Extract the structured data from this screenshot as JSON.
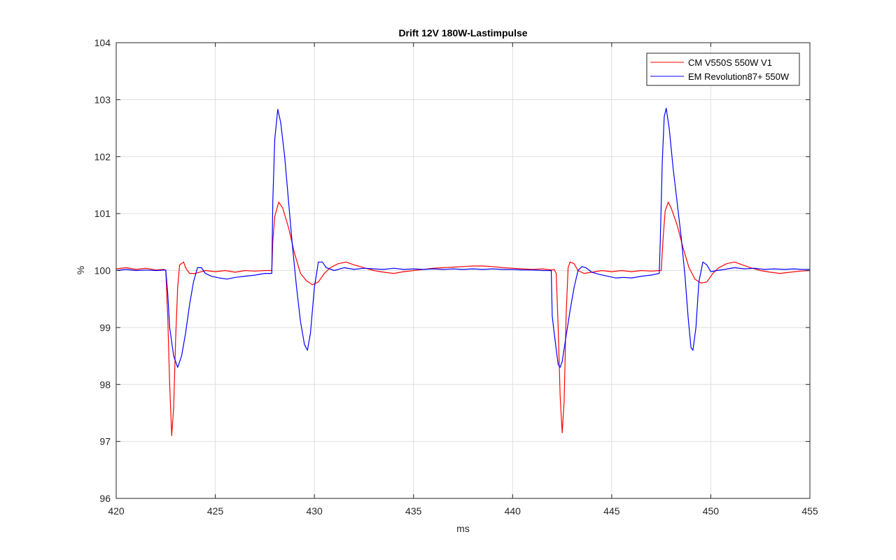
{
  "chart_data": {
    "type": "line",
    "title": "Drift 12V 180W-Lastimpulse",
    "xlabel": "ms",
    "ylabel": "%",
    "xlim": [
      420,
      455
    ],
    "ylim": [
      96,
      104
    ],
    "xticks": [
      420,
      425,
      430,
      435,
      440,
      445,
      450,
      455
    ],
    "yticks": [
      96,
      97,
      98,
      99,
      100,
      101,
      102,
      103,
      104
    ],
    "grid": true,
    "legend_position": "top-right",
    "series": [
      {
        "name": "CM V550S 550W V1",
        "color": "#ff0000",
        "points": [
          [
            420.0,
            100.03
          ],
          [
            420.5,
            100.05
          ],
          [
            421.0,
            100.02
          ],
          [
            421.5,
            100.04
          ],
          [
            422.0,
            100.01
          ],
          [
            422.4,
            100.02
          ],
          [
            422.5,
            100.0
          ],
          [
            422.6,
            99.2
          ],
          [
            422.7,
            98.0
          ],
          [
            422.8,
            97.1
          ],
          [
            422.9,
            97.6
          ],
          [
            423.0,
            98.8
          ],
          [
            423.1,
            99.7
          ],
          [
            423.2,
            100.1
          ],
          [
            423.4,
            100.15
          ],
          [
            423.5,
            100.05
          ],
          [
            423.7,
            99.95
          ],
          [
            424.0,
            99.95
          ],
          [
            424.5,
            100.0
          ],
          [
            425.0,
            99.98
          ],
          [
            425.5,
            100.0
          ],
          [
            426.0,
            99.97
          ],
          [
            426.5,
            100.0
          ],
          [
            427.0,
            99.99
          ],
          [
            427.5,
            100.0
          ],
          [
            427.85,
            100.0
          ],
          [
            427.9,
            100.5
          ],
          [
            428.0,
            100.95
          ],
          [
            428.2,
            101.2
          ],
          [
            428.4,
            101.1
          ],
          [
            428.7,
            100.75
          ],
          [
            429.0,
            100.3
          ],
          [
            429.3,
            99.95
          ],
          [
            429.6,
            99.82
          ],
          [
            429.9,
            99.75
          ],
          [
            430.2,
            99.8
          ],
          [
            430.5,
            99.95
          ],
          [
            430.8,
            100.05
          ],
          [
            431.2,
            100.12
          ],
          [
            431.6,
            100.15
          ],
          [
            432.0,
            100.1
          ],
          [
            432.5,
            100.05
          ],
          [
            433.0,
            100.0
          ],
          [
            433.5,
            99.97
          ],
          [
            434.0,
            99.95
          ],
          [
            434.5,
            99.98
          ],
          [
            435.0,
            100.0
          ],
          [
            435.5,
            100.02
          ],
          [
            436.0,
            100.04
          ],
          [
            436.5,
            100.05
          ],
          [
            437.0,
            100.06
          ],
          [
            437.5,
            100.07
          ],
          [
            438.0,
            100.08
          ],
          [
            438.5,
            100.08
          ],
          [
            439.0,
            100.07
          ],
          [
            439.5,
            100.05
          ],
          [
            440.0,
            100.04
          ],
          [
            440.5,
            100.03
          ],
          [
            441.0,
            100.02
          ],
          [
            441.5,
            100.03
          ],
          [
            442.0,
            100.01
          ],
          [
            442.1,
            100.02
          ],
          [
            442.2,
            99.95
          ],
          [
            442.3,
            99.0
          ],
          [
            442.4,
            97.8
          ],
          [
            442.5,
            97.15
          ],
          [
            442.6,
            97.7
          ],
          [
            442.7,
            99.2
          ],
          [
            442.8,
            100.05
          ],
          [
            442.9,
            100.15
          ],
          [
            443.1,
            100.12
          ],
          [
            443.3,
            100.0
          ],
          [
            443.6,
            99.95
          ],
          [
            444.0,
            99.97
          ],
          [
            444.5,
            100.0
          ],
          [
            445.0,
            99.98
          ],
          [
            445.5,
            100.0
          ],
          [
            446.0,
            99.98
          ],
          [
            446.5,
            100.0
          ],
          [
            447.0,
            99.99
          ],
          [
            447.4,
            100.0
          ],
          [
            447.5,
            100.0
          ],
          [
            447.6,
            100.6
          ],
          [
            447.7,
            101.05
          ],
          [
            447.85,
            101.2
          ],
          [
            448.0,
            101.1
          ],
          [
            448.3,
            100.8
          ],
          [
            448.6,
            100.4
          ],
          [
            448.9,
            100.05
          ],
          [
            449.2,
            99.85
          ],
          [
            449.5,
            99.78
          ],
          [
            449.8,
            99.8
          ],
          [
            450.1,
            99.95
          ],
          [
            450.4,
            100.05
          ],
          [
            450.8,
            100.12
          ],
          [
            451.2,
            100.15
          ],
          [
            451.6,
            100.1
          ],
          [
            452.0,
            100.05
          ],
          [
            452.5,
            100.0
          ],
          [
            453.0,
            99.97
          ],
          [
            453.5,
            99.95
          ],
          [
            454.0,
            99.97
          ],
          [
            454.5,
            99.99
          ],
          [
            455.0,
            100.0
          ]
        ]
      },
      {
        "name": "EM Revolution87+ 550W",
        "color": "#0000ff",
        "points": [
          [
            420.0,
            100.0
          ],
          [
            420.5,
            100.02
          ],
          [
            421.0,
            100.0
          ],
          [
            421.5,
            100.01
          ],
          [
            422.0,
            100.0
          ],
          [
            422.5,
            100.01
          ],
          [
            422.6,
            99.6
          ],
          [
            422.7,
            99.0
          ],
          [
            422.9,
            98.5
          ],
          [
            423.1,
            98.3
          ],
          [
            423.3,
            98.5
          ],
          [
            423.5,
            98.9
          ],
          [
            423.7,
            99.4
          ],
          [
            423.9,
            99.8
          ],
          [
            424.1,
            100.05
          ],
          [
            424.3,
            100.05
          ],
          [
            424.5,
            99.95
          ],
          [
            424.8,
            99.9
          ],
          [
            425.2,
            99.87
          ],
          [
            425.6,
            99.85
          ],
          [
            426.0,
            99.88
          ],
          [
            426.5,
            99.9
          ],
          [
            427.0,
            99.92
          ],
          [
            427.5,
            99.95
          ],
          [
            427.85,
            99.95
          ],
          [
            427.9,
            101.2
          ],
          [
            428.0,
            102.3
          ],
          [
            428.15,
            102.83
          ],
          [
            428.3,
            102.6
          ],
          [
            428.5,
            102.0
          ],
          [
            428.7,
            101.2
          ],
          [
            428.9,
            100.4
          ],
          [
            429.1,
            99.7
          ],
          [
            429.3,
            99.1
          ],
          [
            429.5,
            98.7
          ],
          [
            429.65,
            98.6
          ],
          [
            429.8,
            98.9
          ],
          [
            430.0,
            99.7
          ],
          [
            430.2,
            100.15
          ],
          [
            430.4,
            100.15
          ],
          [
            430.6,
            100.05
          ],
          [
            431.0,
            100.0
          ],
          [
            431.5,
            100.05
          ],
          [
            432.0,
            100.02
          ],
          [
            432.5,
            100.04
          ],
          [
            433.0,
            100.03
          ],
          [
            433.5,
            100.02
          ],
          [
            434.0,
            100.04
          ],
          [
            434.5,
            100.02
          ],
          [
            435.0,
            100.03
          ],
          [
            435.5,
            100.02
          ],
          [
            436.0,
            100.03
          ],
          [
            436.5,
            100.02
          ],
          [
            437.0,
            100.03
          ],
          [
            437.5,
            100.02
          ],
          [
            438.0,
            100.03
          ],
          [
            438.5,
            100.02
          ],
          [
            439.0,
            100.03
          ],
          [
            439.5,
            100.02
          ],
          [
            440.0,
            100.02
          ],
          [
            440.5,
            100.01
          ],
          [
            441.0,
            100.01
          ],
          [
            441.5,
            100.0
          ],
          [
            441.95,
            100.0
          ],
          [
            442.0,
            99.2
          ],
          [
            442.1,
            98.9
          ],
          [
            442.3,
            98.35
          ],
          [
            442.4,
            98.3
          ],
          [
            442.5,
            98.4
          ],
          [
            442.7,
            98.85
          ],
          [
            442.9,
            99.3
          ],
          [
            443.1,
            99.7
          ],
          [
            443.3,
            100.0
          ],
          [
            443.5,
            100.07
          ],
          [
            443.7,
            100.05
          ],
          [
            444.0,
            99.97
          ],
          [
            444.4,
            99.93
          ],
          [
            444.8,
            99.9
          ],
          [
            445.2,
            99.87
          ],
          [
            445.6,
            99.88
          ],
          [
            446.0,
            99.87
          ],
          [
            446.5,
            99.9
          ],
          [
            447.0,
            99.92
          ],
          [
            447.4,
            99.95
          ],
          [
            447.45,
            100.5
          ],
          [
            447.55,
            101.9
          ],
          [
            447.65,
            102.7
          ],
          [
            447.75,
            102.85
          ],
          [
            447.9,
            102.5
          ],
          [
            448.1,
            101.8
          ],
          [
            448.3,
            101.2
          ],
          [
            448.5,
            100.6
          ],
          [
            448.7,
            99.9
          ],
          [
            448.85,
            99.2
          ],
          [
            449.0,
            98.65
          ],
          [
            449.1,
            98.6
          ],
          [
            449.25,
            99.0
          ],
          [
            449.4,
            99.8
          ],
          [
            449.6,
            100.15
          ],
          [
            449.8,
            100.1
          ],
          [
            450.0,
            99.98
          ],
          [
            450.3,
            100.0
          ],
          [
            450.7,
            100.02
          ],
          [
            451.2,
            100.05
          ],
          [
            451.7,
            100.03
          ],
          [
            452.2,
            100.04
          ],
          [
            452.7,
            100.02
          ],
          [
            453.2,
            100.03
          ],
          [
            453.7,
            100.02
          ],
          [
            454.2,
            100.03
          ],
          [
            454.6,
            100.02
          ],
          [
            455.0,
            100.02
          ]
        ]
      }
    ]
  }
}
